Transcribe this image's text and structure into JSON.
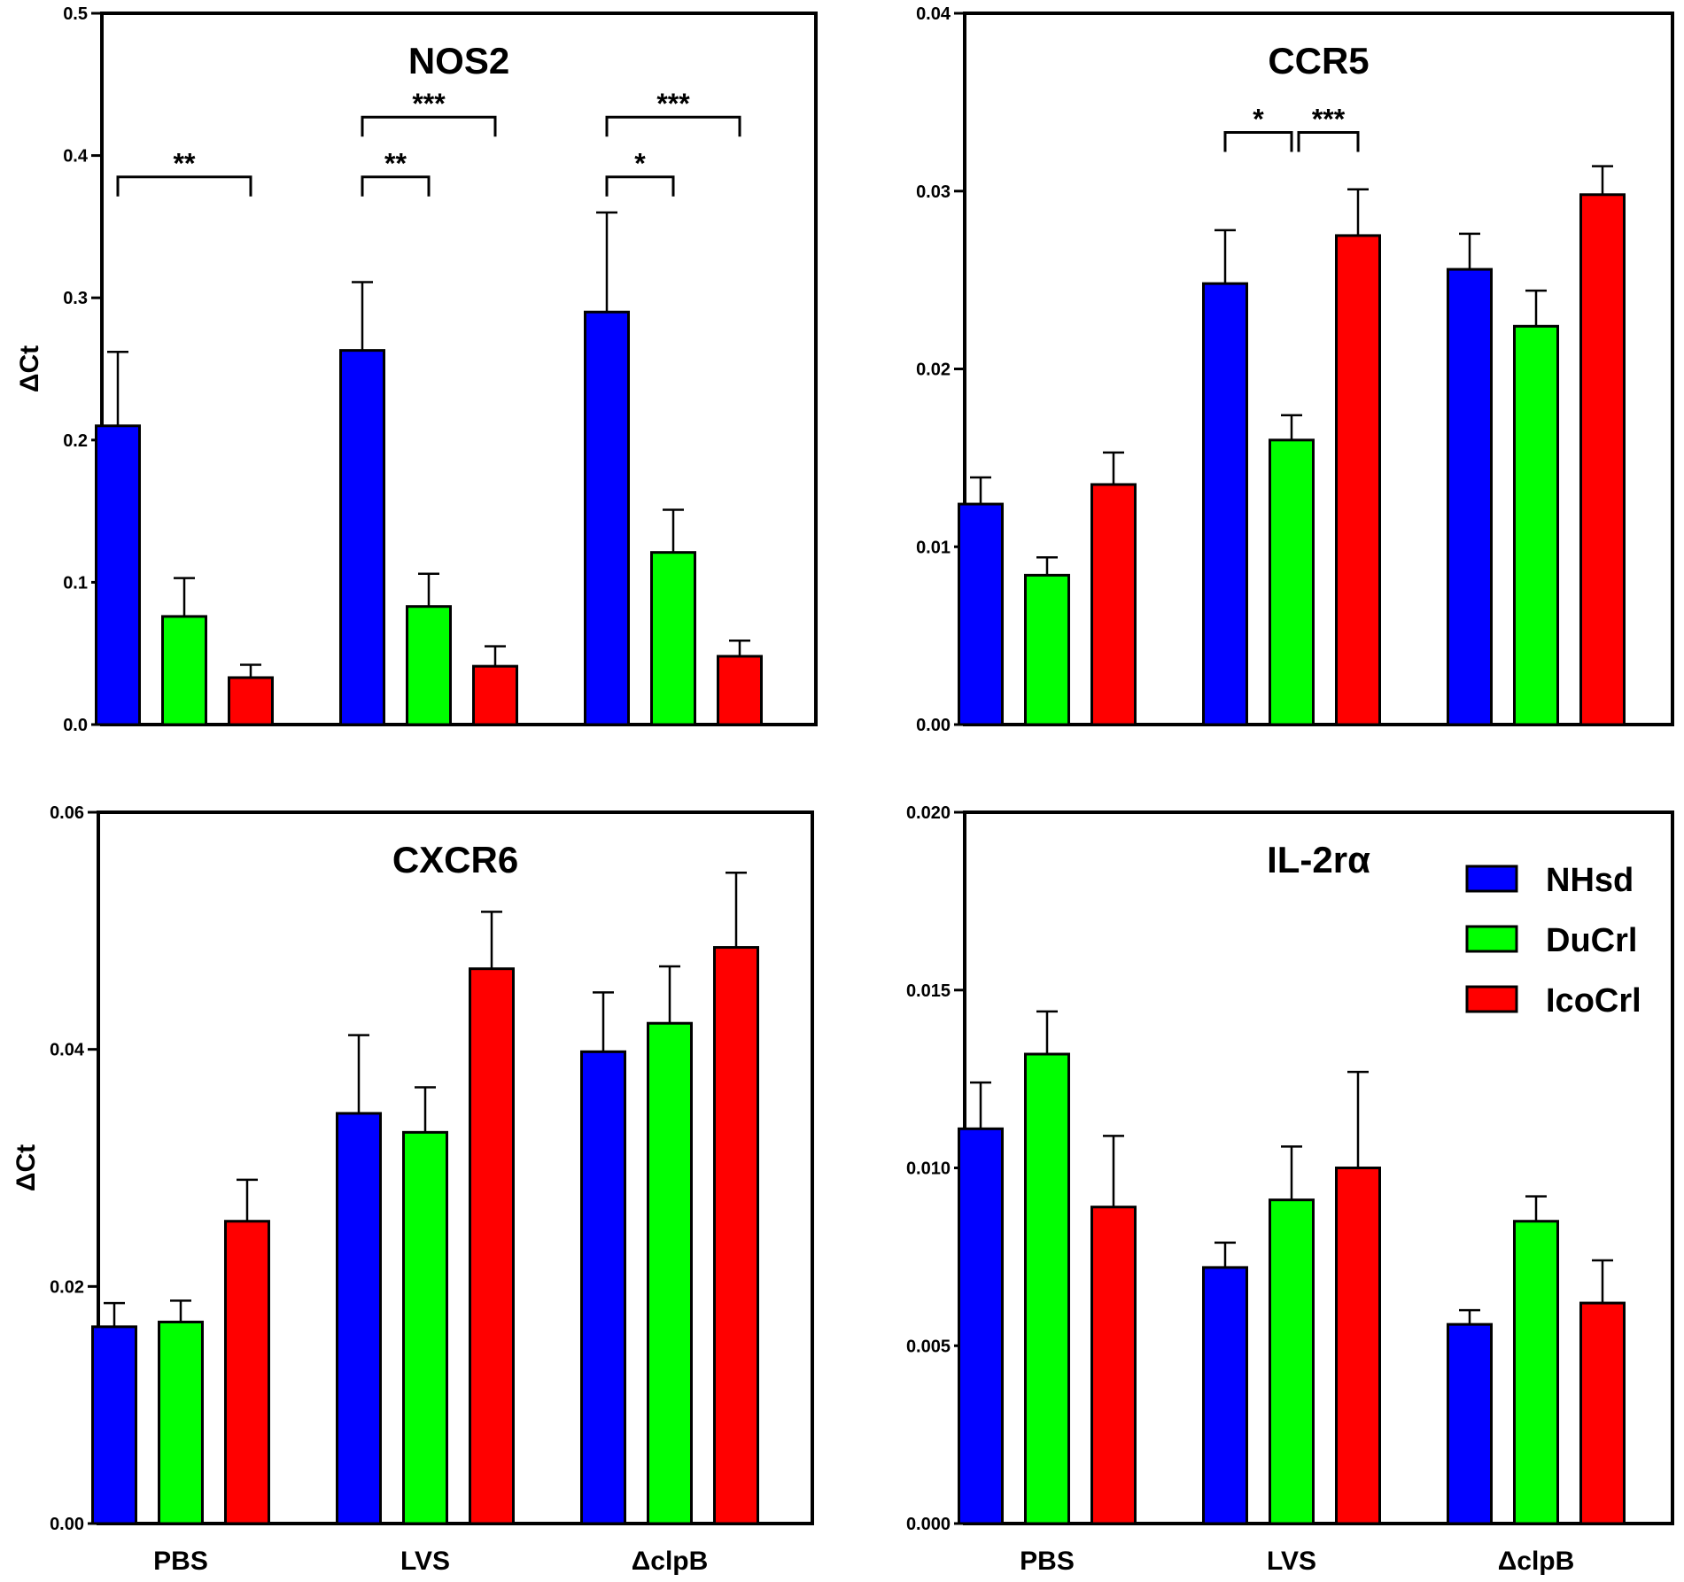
{
  "chart_data": [
    {
      "type": "bar",
      "title": "NOS2",
      "ylabel": "ΔCt",
      "ylim": [
        0,
        0.5
      ],
      "yticks": [
        "0.0",
        "0.1",
        "0.2",
        "0.3",
        "0.4",
        "0.5"
      ],
      "tick_values": [
        0,
        0.1,
        0.2,
        0.3,
        0.4,
        0.5
      ],
      "categories": [
        "PBS",
        "LVS",
        "ΔclpB"
      ],
      "show_xlabels": false,
      "series": [
        {
          "name": "NHsd",
          "values": [
            0.21,
            0.263,
            0.29
          ],
          "errors": [
            0.052,
            0.048,
            0.07
          ]
        },
        {
          "name": "DuCrl",
          "values": [
            0.076,
            0.083,
            0.121
          ],
          "errors": [
            0.027,
            0.023,
            0.03
          ]
        },
        {
          "name": "IcoCrl",
          "values": [
            0.033,
            0.041,
            0.048
          ],
          "errors": [
            0.009,
            0.014,
            0.011
          ]
        }
      ],
      "significance": [
        {
          "group": 0,
          "from": 0,
          "to": 2,
          "y": 0.385,
          "label": "**"
        },
        {
          "group": 1,
          "from": 0,
          "to": 1,
          "y": 0.385,
          "label": "**"
        },
        {
          "group": 1,
          "from": 0,
          "to": 2,
          "y": 0.427,
          "label": "***"
        },
        {
          "group": 2,
          "from": 0,
          "to": 1,
          "y": 0.385,
          "label": "*"
        },
        {
          "group": 2,
          "from": 0,
          "to": 2,
          "y": 0.427,
          "label": "***"
        }
      ]
    },
    {
      "type": "bar",
      "title": "CCR5",
      "ylabel": "",
      "ylim": [
        0,
        0.04
      ],
      "yticks": [
        "0.00",
        "0.01",
        "0.02",
        "0.03",
        "0.04"
      ],
      "tick_values": [
        0,
        0.01,
        0.02,
        0.03,
        0.04
      ],
      "categories": [
        "PBS",
        "LVS",
        "ΔclpB"
      ],
      "show_xlabels": false,
      "series": [
        {
          "name": "NHsd",
          "values": [
            0.0124,
            0.0248,
            0.0256
          ],
          "errors": [
            0.0015,
            0.003,
            0.002
          ]
        },
        {
          "name": "DuCrl",
          "values": [
            0.0084,
            0.016,
            0.0224
          ],
          "errors": [
            0.001,
            0.0014,
            0.002
          ]
        },
        {
          "name": "IcoCrl",
          "values": [
            0.0135,
            0.0275,
            0.0298
          ],
          "errors": [
            0.0018,
            0.0026,
            0.0016
          ]
        }
      ],
      "significance": [
        {
          "group": 1,
          "from": 0,
          "to": 1,
          "y": 0.0333,
          "label": "*"
        },
        {
          "group": 1,
          "from": 1,
          "to": 2,
          "y": 0.0333,
          "label": "***"
        }
      ]
    },
    {
      "type": "bar",
      "title": "CXCR6",
      "ylabel": "ΔCt",
      "ylim": [
        0,
        0.06
      ],
      "yticks": [
        "0.00",
        "0.02",
        "0.04",
        "0.06"
      ],
      "tick_values": [
        0,
        0.02,
        0.04,
        0.06
      ],
      "categories": [
        "PBS",
        "LVS",
        "ΔclpB"
      ],
      "show_xlabels": true,
      "series": [
        {
          "name": "NHsd",
          "values": [
            0.0166,
            0.0346,
            0.0398
          ],
          "errors": [
            0.002,
            0.0066,
            0.005
          ]
        },
        {
          "name": "DuCrl",
          "values": [
            0.017,
            0.033,
            0.0422
          ],
          "errors": [
            0.0018,
            0.0038,
            0.0048
          ]
        },
        {
          "name": "IcoCrl",
          "values": [
            0.0255,
            0.0468,
            0.0486
          ],
          "errors": [
            0.0035,
            0.0048,
            0.0063
          ]
        }
      ],
      "significance": []
    },
    {
      "type": "bar",
      "title": "IL-2rα",
      "ylabel": "",
      "ylim": [
        0,
        0.02
      ],
      "yticks": [
        "0.000",
        "0.005",
        "0.010",
        "0.015",
        "0.020"
      ],
      "tick_values": [
        0,
        0.005,
        0.01,
        0.015,
        0.02
      ],
      "categories": [
        "PBS",
        "LVS",
        "ΔclpB"
      ],
      "show_xlabels": true,
      "series": [
        {
          "name": "NHsd",
          "values": [
            0.0111,
            0.0072,
            0.0056
          ],
          "errors": [
            0.0013,
            0.0007,
            0.0004
          ]
        },
        {
          "name": "DuCrl",
          "values": [
            0.0132,
            0.0091,
            0.0085
          ],
          "errors": [
            0.0012,
            0.0015,
            0.0007
          ]
        },
        {
          "name": "IcoCrl",
          "values": [
            0.0089,
            0.01,
            0.0062
          ],
          "errors": [
            0.002,
            0.0027,
            0.0012
          ]
        }
      ],
      "significance": []
    }
  ],
  "legend": [
    {
      "name": "NHsd",
      "color": "#0000ff"
    },
    {
      "name": "DuCrl",
      "color": "#00ff00"
    },
    {
      "name": "IcoCrl",
      "color": "#ff0000"
    }
  ]
}
